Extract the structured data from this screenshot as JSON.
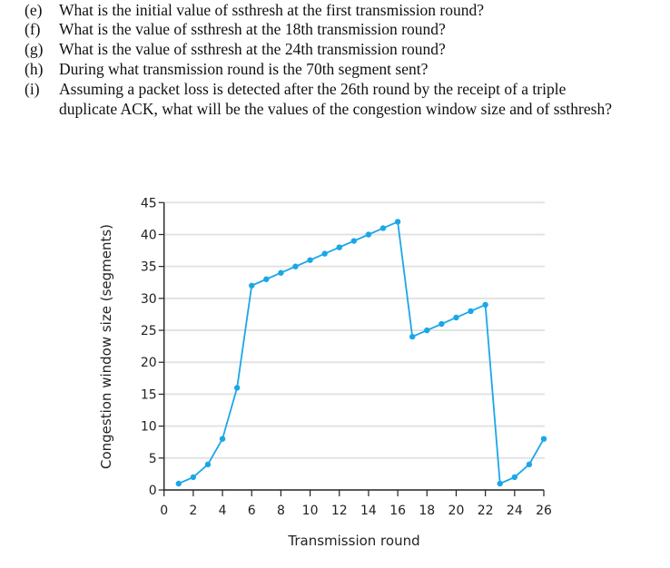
{
  "questions": [
    {
      "label": "(e)",
      "text": "What is the initial value of ssthresh at the first transmission round?"
    },
    {
      "label": "(f)",
      "text": "What is the value of ssthresh at the 18th transmission round?"
    },
    {
      "label": "(g)",
      "text": "What is the value of ssthresh at the 24th transmission round?"
    },
    {
      "label": "(h)",
      "text": "During what transmission round is the 70th segment sent?"
    },
    {
      "label": "(i)",
      "text": "Assuming a packet loss is detected after the 26th round by the receipt of a triple",
      "continuation": "duplicate ACK, what will be the values of the congestion window size and of ssthresh?"
    }
  ],
  "chart_data": {
    "type": "line",
    "title": "",
    "xlabel": "Transmission round",
    "ylabel": "Congestion window size (segments)",
    "xlim": [
      0,
      26
    ],
    "ylim": [
      0,
      45
    ],
    "xticks": [
      0,
      2,
      4,
      6,
      8,
      10,
      12,
      14,
      16,
      18,
      20,
      22,
      24,
      26
    ],
    "yticks": [
      0,
      5,
      10,
      15,
      20,
      25,
      30,
      35,
      40,
      45
    ],
    "grid": true,
    "color": "#1aa7e8",
    "x": [
      1,
      2,
      3,
      4,
      5,
      6,
      7,
      8,
      9,
      10,
      11,
      12,
      13,
      14,
      15,
      16,
      17,
      18,
      19,
      20,
      21,
      22,
      23,
      24,
      25,
      26
    ],
    "y": [
      1,
      2,
      4,
      8,
      16,
      32,
      33,
      34,
      35,
      36,
      37,
      38,
      39,
      40,
      41,
      42,
      24,
      25,
      26,
      27,
      28,
      29,
      1,
      2,
      4,
      8
    ]
  }
}
